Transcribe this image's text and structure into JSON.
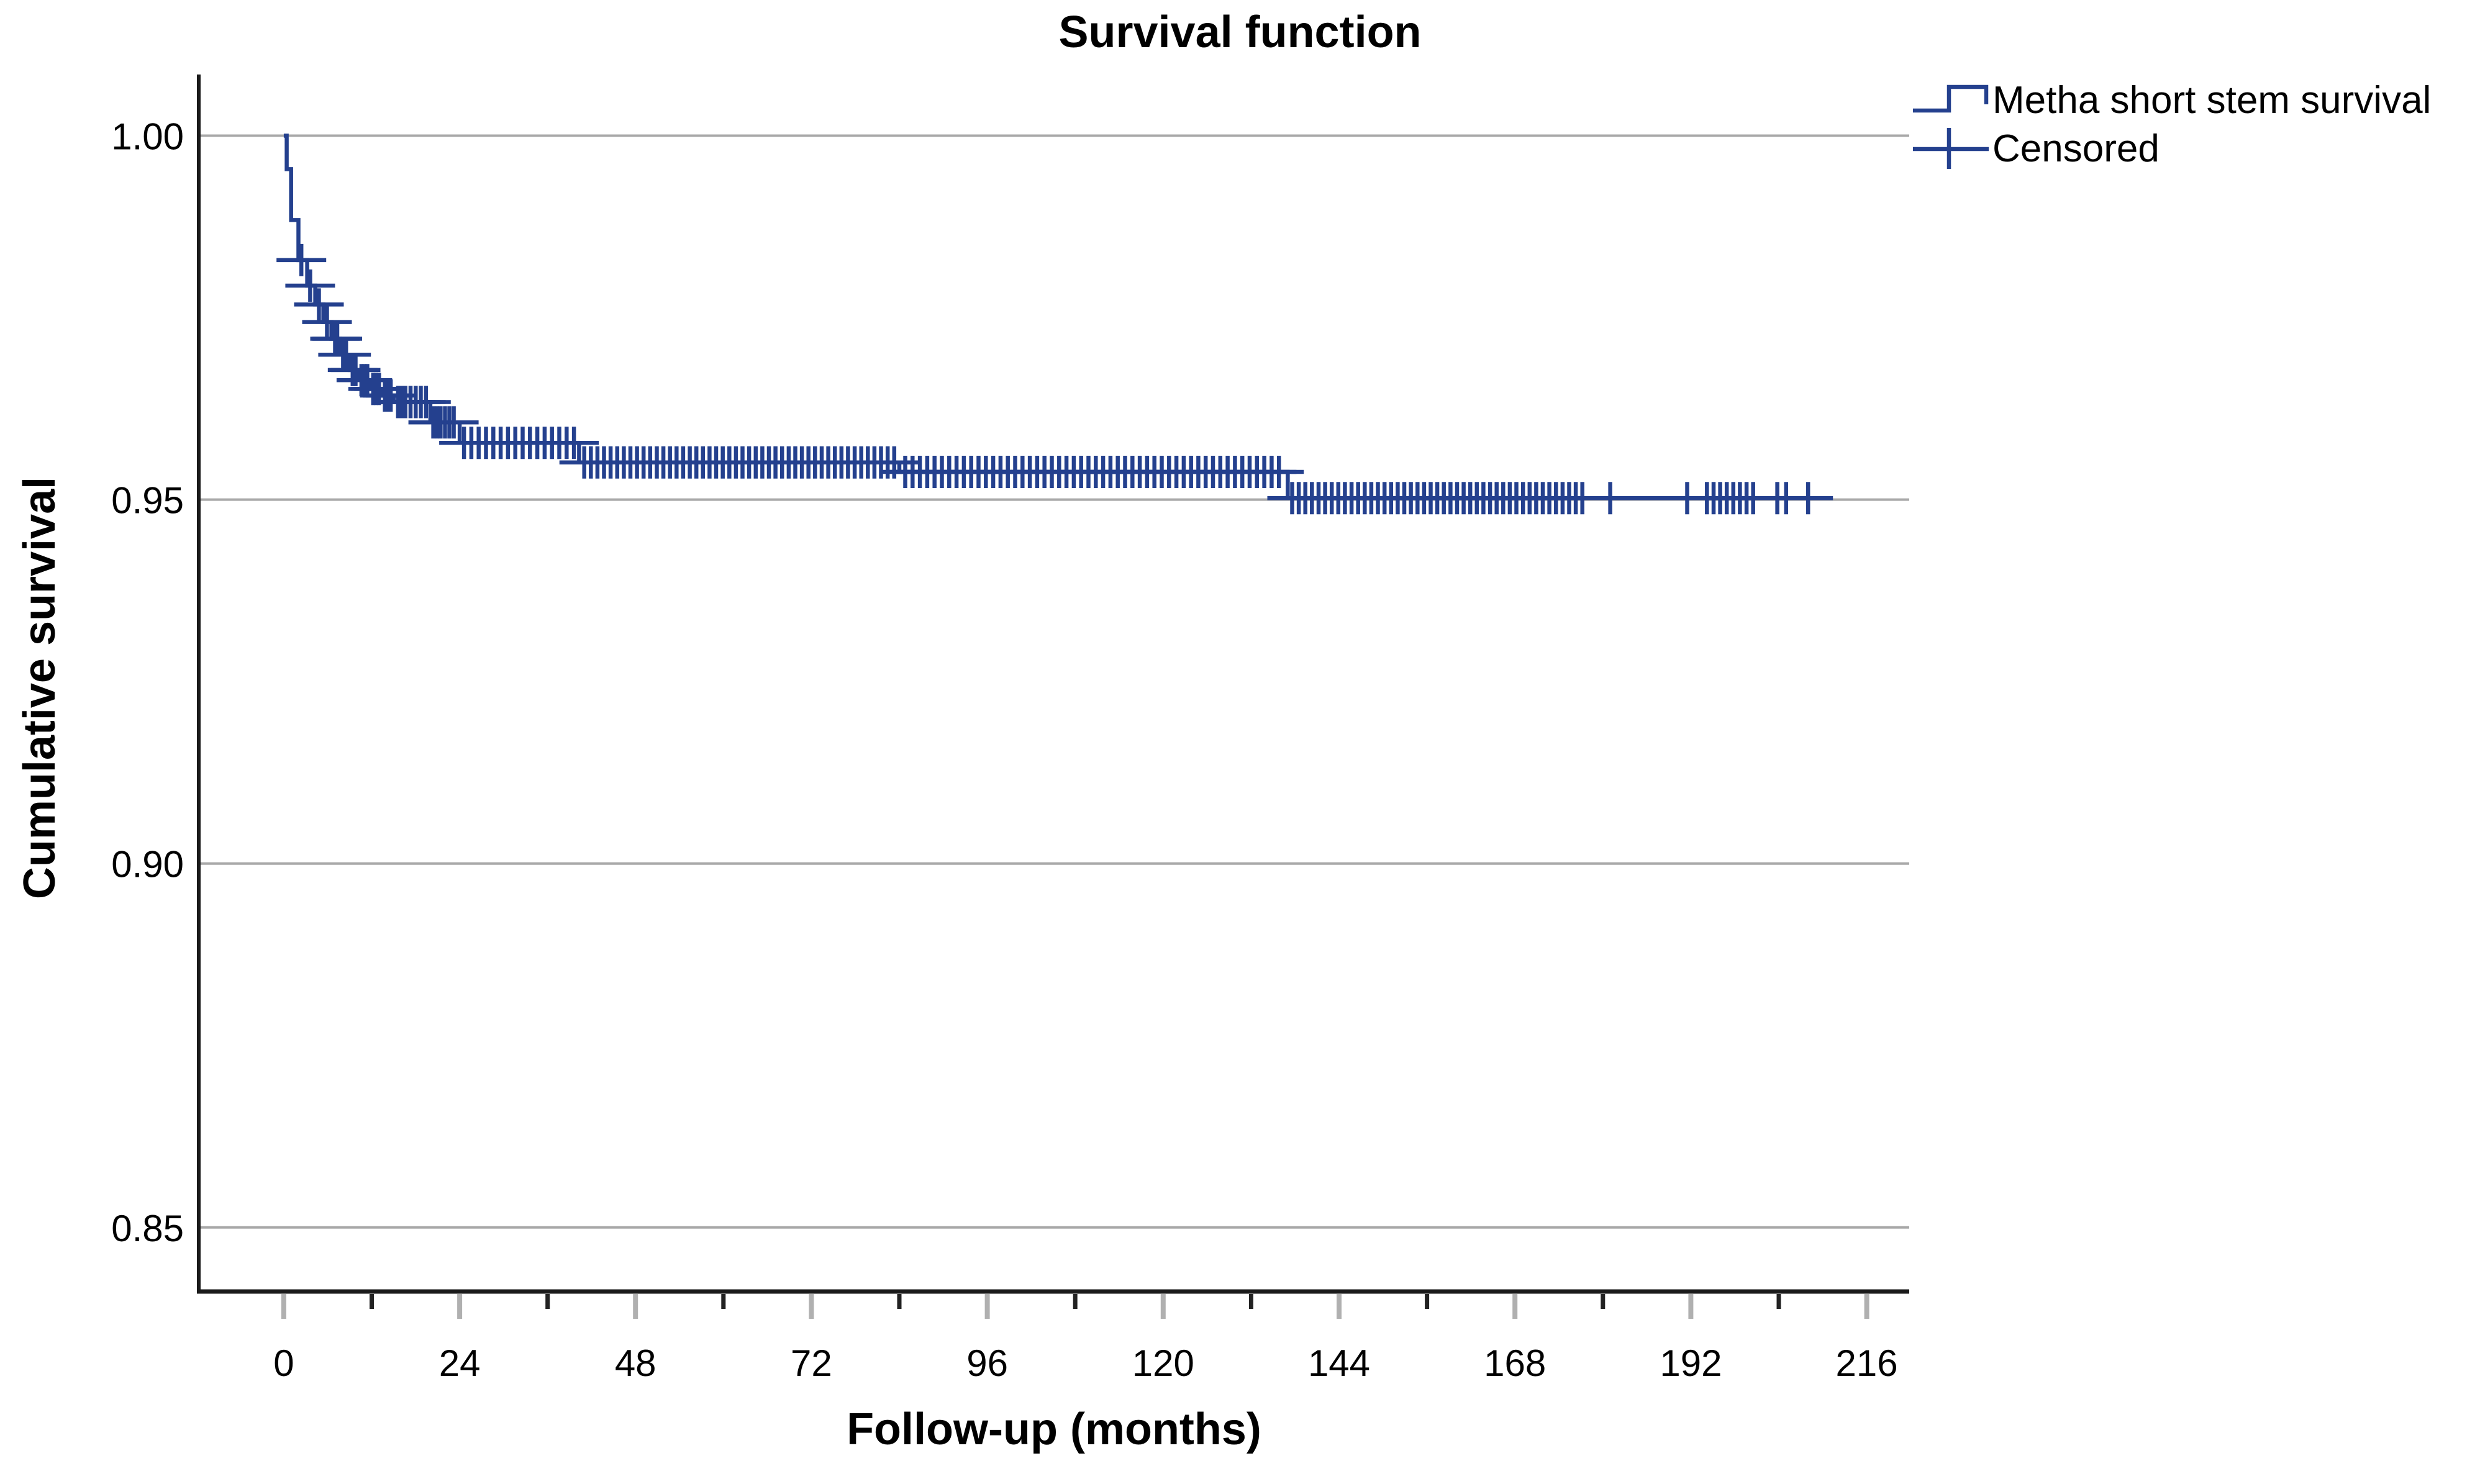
{
  "page": {
    "background": "#ffffff"
  },
  "colors": {
    "curve": "#24408e",
    "grid": "#a8a8a8",
    "axis": "#1a1a1a",
    "tick_major": "#b0b0b0",
    "tick_minor": "#222222",
    "text": "#000000"
  },
  "legend": {
    "series_label": "Metha short stem survival",
    "censored_label": "Censored"
  },
  "chart_data": {
    "type": "line",
    "subtype": "kaplan-meier-step",
    "title": "Survival function",
    "xlabel": "Follow-up (months)",
    "ylabel": "Cumulative survival",
    "xlim": [
      -11.6,
      221.8
    ],
    "ylim": [
      0.8412,
      1.0084
    ],
    "grid": "horizontal",
    "legend_position": "top-right",
    "xtick_values": [
      0,
      24,
      48,
      72,
      96,
      120,
      144,
      168,
      192,
      216
    ],
    "xtick_labels": [
      "0",
      "24",
      "48",
      "72",
      "96",
      "120",
      "144",
      "168",
      "192",
      "216"
    ],
    "xtick_minor_values": [
      12,
      36,
      60,
      84,
      108,
      132,
      156,
      180,
      204
    ],
    "ytick_values": [
      1.0,
      0.95,
      0.9,
      0.85
    ],
    "ytick_labels": [
      "1.00",
      "0.95",
      "0.90",
      "0.85"
    ],
    "series": [
      {
        "name": "Metha short stem survival",
        "color": "#24408e",
        "steps": [
          [
            0,
            1.0
          ],
          [
            0.4,
            0.9954
          ],
          [
            1.0,
            0.9884
          ],
          [
            2.0,
            0.9829
          ],
          [
            3.2,
            0.9794
          ],
          [
            4.3,
            0.9768
          ],
          [
            5.4,
            0.9744
          ],
          [
            6.5,
            0.9721
          ],
          [
            7.7,
            0.9699
          ],
          [
            9.0,
            0.9678
          ],
          [
            10.3,
            0.9664
          ],
          [
            11.8,
            0.9652
          ],
          [
            13.4,
            0.9643
          ],
          [
            15.0,
            0.9634
          ],
          [
            20.0,
            0.9606
          ],
          [
            24.0,
            0.9578
          ],
          [
            40.3,
            0.9551
          ],
          [
            84.0,
            0.9538
          ],
          [
            137.0,
            0.9502
          ]
        ],
        "end_time": 209
      }
    ],
    "censored_times": [
      2.4,
      3.6,
      4.8,
      5.9,
      7.0,
      7.3,
      8.1,
      8.5,
      9.4,
      9.8,
      10.6,
      11.0,
      11.4,
      12.2,
      12.6,
      13.0,
      13.8,
      14.2,
      14.6,
      15.6,
      16.1,
      16.6,
      17.3,
      18.0,
      18.7,
      19.4,
      20.4,
      20.9,
      21.4,
      22.0,
      22.6,
      23.2,
      24.6,
      25.6,
      26.6,
      27.6,
      28.6,
      29.6,
      30.6,
      31.6,
      32.6,
      33.6,
      34.6,
      35.6,
      36.6,
      37.6,
      38.6,
      39.6,
      41.0,
      41.9,
      42.8,
      43.7,
      44.6,
      45.5,
      46.4,
      47.3,
      48.2,
      49.1,
      50.0,
      50.9,
      51.8,
      52.7,
      53.6,
      54.5,
      55.4,
      56.3,
      57.2,
      58.1,
      59.0,
      59.9,
      60.8,
      61.7,
      62.6,
      63.5,
      64.4,
      65.3,
      66.2,
      67.1,
      68.0,
      68.9,
      69.8,
      70.7,
      71.6,
      72.5,
      73.4,
      74.3,
      75.2,
      76.1,
      77.0,
      77.9,
      78.8,
      79.7,
      80.6,
      81.5,
      82.4,
      83.3,
      84.8,
      85.8,
      86.8,
      87.8,
      88.8,
      89.8,
      90.8,
      91.8,
      92.8,
      93.8,
      94.8,
      95.8,
      96.8,
      97.8,
      98.8,
      99.8,
      100.8,
      101.8,
      102.8,
      103.8,
      104.8,
      105.8,
      106.8,
      107.8,
      108.8,
      109.8,
      110.8,
      111.8,
      112.8,
      113.8,
      114.8,
      115.8,
      116.8,
      117.8,
      118.8,
      119.8,
      120.8,
      121.8,
      122.8,
      123.8,
      124.8,
      125.8,
      126.8,
      127.8,
      128.8,
      129.8,
      130.8,
      131.8,
      132.8,
      133.8,
      134.8,
      135.8,
      137.6,
      138.5,
      139.4,
      140.3,
      141.2,
      142.1,
      143.0,
      143.9,
      144.8,
      145.7,
      146.6,
      147.5,
      148.4,
      149.3,
      150.2,
      151.1,
      152.0,
      152.9,
      153.8,
      154.7,
      155.6,
      156.5,
      157.4,
      158.3,
      159.2,
      160.1,
      161.0,
      161.9,
      162.8,
      163.7,
      164.6,
      165.5,
      166.4,
      167.3,
      168.2,
      169.1,
      170.0,
      170.9,
      171.8,
      172.7,
      173.6,
      174.5,
      175.4,
      176.3,
      177.2,
      181.0,
      191.5,
      194.2,
      195.1,
      196.0,
      196.9,
      197.8,
      198.7,
      199.6,
      200.5,
      203.8,
      205.0,
      208.0
    ]
  }
}
